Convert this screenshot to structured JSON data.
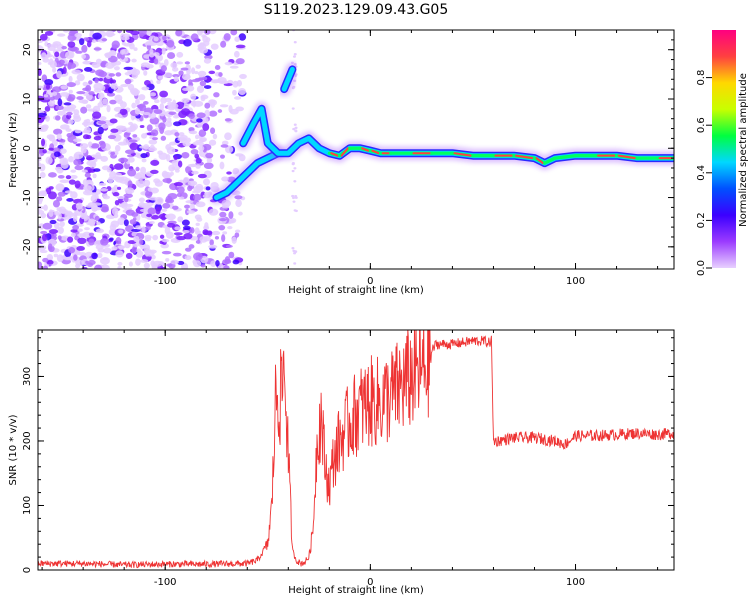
{
  "title": "S119.2023.129.09.43.G05",
  "chart_data": [
    {
      "type": "heatmap",
      "xlabel": "Height of straight line (km)",
      "ylabel": "Frequency (Hz)",
      "xlim": [
        -162,
        148
      ],
      "ylim": [
        -24.5,
        24
      ],
      "xticks": [
        -100,
        0,
        100
      ],
      "yticks": [
        -20,
        -10,
        0,
        10,
        20
      ],
      "colorbar": {
        "label": "Normalized spectral amplitude",
        "range": [
          0,
          1
        ],
        "ticks": [
          "0.0",
          "0.2",
          "0.4",
          "0.6",
          "0.8"
        ],
        "colormap": [
          "#e8d0ff",
          "#9b3bff",
          "#3b00ff",
          "#0050ff",
          "#00d8ff",
          "#00ff40",
          "#c8ff00",
          "#ffd800",
          "#ff4040",
          "#ff0080"
        ]
      },
      "noise_region": {
        "x": [
          -162,
          -62
        ],
        "freq": [
          -24.5,
          24
        ]
      },
      "ridge": [
        [
          -62,
          1
        ],
        [
          -57,
          5
        ],
        [
          -53,
          8
        ],
        [
          -50,
          1
        ],
        [
          -45,
          -1
        ],
        [
          -40,
          -1
        ],
        [
          -35,
          1
        ],
        [
          -30,
          2
        ],
        [
          -25,
          0
        ],
        [
          -20,
          -1
        ],
        [
          -15,
          -1.5
        ],
        [
          -10,
          0
        ],
        [
          -5,
          0
        ],
        [
          0,
          -0.5
        ],
        [
          5,
          -1
        ],
        [
          10,
          -1
        ],
        [
          20,
          -1
        ],
        [
          30,
          -1
        ],
        [
          40,
          -1
        ],
        [
          50,
          -1.5
        ],
        [
          60,
          -1.5
        ],
        [
          70,
          -1.5
        ],
        [
          80,
          -2
        ],
        [
          85,
          -3
        ],
        [
          90,
          -2
        ],
        [
          100,
          -1.5
        ],
        [
          110,
          -1.5
        ],
        [
          120,
          -1.5
        ],
        [
          130,
          -2
        ],
        [
          140,
          -2
        ],
        [
          148,
          -2
        ]
      ],
      "lower_branch": [
        [
          -75,
          -10
        ],
        [
          -70,
          -9
        ],
        [
          -65,
          -7
        ],
        [
          -60,
          -5
        ],
        [
          -55,
          -3
        ],
        [
          -50,
          -2
        ],
        [
          -45,
          -1
        ]
      ],
      "upper_branch": [
        [
          -42,
          12
        ],
        [
          -38,
          16
        ]
      ]
    },
    {
      "type": "line",
      "xlabel": "Height of straight line (km)",
      "ylabel": "SNR (10 * v/v)",
      "xlim": [
        -162,
        148
      ],
      "ylim": [
        0,
        372
      ],
      "xticks": [
        -100,
        0,
        100
      ],
      "yticks": [
        0,
        100,
        200,
        300
      ],
      "color": "#ee3333",
      "series": [
        {
          "x": [
            -162,
            -140,
            -120,
            -100,
            -80,
            -60,
            -55,
            -50,
            -48,
            -46,
            -44,
            -42,
            -40,
            -38,
            -36,
            -34,
            -32,
            -30,
            -28,
            -26,
            -24,
            -22,
            -20,
            -18,
            -15,
            -10,
            -5,
            0,
            5,
            10,
            15,
            20,
            25,
            28,
            30,
            32,
            40,
            50,
            55,
            58,
            59,
            60,
            62,
            70,
            80,
            90,
            95,
            100,
            110,
            120,
            130,
            140,
            148
          ],
          "y": [
            10,
            10,
            8,
            9,
            9,
            10,
            15,
            40,
            100,
            280,
            260,
            320,
            180,
            30,
            15,
            10,
            12,
            20,
            60,
            200,
            240,
            160,
            130,
            170,
            200,
            230,
            250,
            260,
            260,
            270,
            285,
            300,
            310,
            320,
            340,
            350,
            350,
            355,
            355,
            352,
            357,
            200,
            200,
            205,
            205,
            200,
            195,
            208,
            208,
            210,
            212,
            210,
            212
          ]
        }
      ]
    }
  ]
}
